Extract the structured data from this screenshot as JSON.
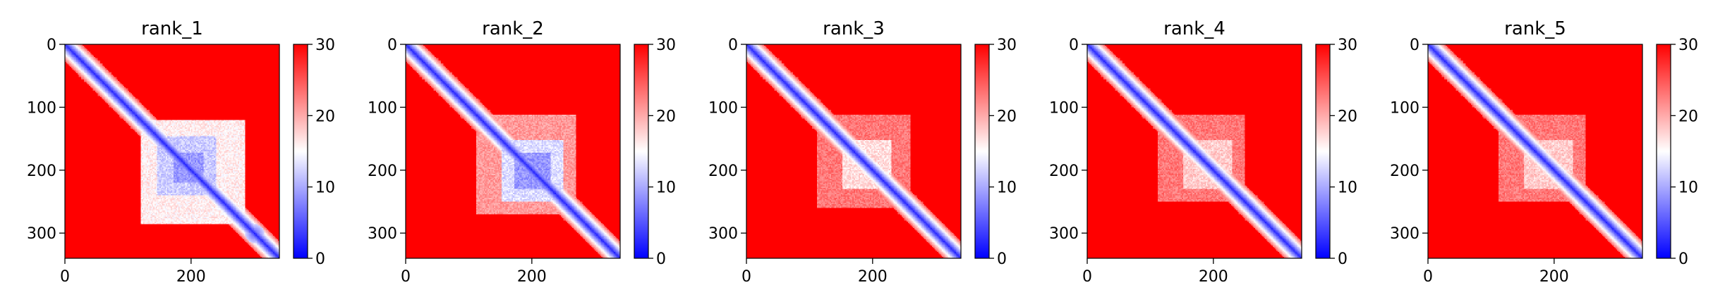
{
  "figure": {
    "background": "#ffffff"
  },
  "chart_data": [
    {
      "type": "heatmap",
      "title": "rank_1",
      "matrix_size": 340,
      "xlim": [
        0,
        340
      ],
      "ylim": [
        340,
        0
      ],
      "x_ticks": [
        0,
        200
      ],
      "y_ticks": [
        0,
        100,
        200,
        300
      ],
      "colorbar": {
        "range": [
          0,
          30
        ],
        "ticks": [
          0,
          10,
          20,
          30
        ],
        "colors": [
          "#0000ff",
          "#ffffff",
          "#ff0000"
        ]
      },
      "diagonal_value": 2,
      "features": [
        {
          "kind": "block",
          "range": [
            120,
            285
          ],
          "value": 14
        },
        {
          "kind": "block",
          "range": [
            145,
            240
          ],
          "value": 10
        },
        {
          "kind": "block",
          "range": [
            170,
            220
          ],
          "value": 7
        },
        {
          "kind": "blob",
          "center": [
            300,
            300
          ],
          "value": 5
        }
      ]
    },
    {
      "type": "heatmap",
      "title": "rank_2",
      "matrix_size": 340,
      "xlim": [
        0,
        340
      ],
      "ylim": [
        340,
        0
      ],
      "x_ticks": [
        0,
        200
      ],
      "y_ticks": [
        0,
        100,
        200,
        300
      ],
      "colorbar": {
        "range": [
          0,
          30
        ],
        "ticks": [
          0,
          10,
          20,
          30
        ],
        "colors": [
          "#0000ff",
          "#ffffff",
          "#ff0000"
        ]
      },
      "diagonal_value": 2,
      "features": [
        {
          "kind": "block",
          "range": [
            110,
            270
          ],
          "value": 19
        },
        {
          "kind": "block",
          "range": [
            150,
            250
          ],
          "value": 11
        },
        {
          "kind": "block",
          "range": [
            170,
            230
          ],
          "value": 7
        }
      ]
    },
    {
      "type": "heatmap",
      "title": "rank_3",
      "matrix_size": 340,
      "xlim": [
        0,
        340
      ],
      "ylim": [
        340,
        0
      ],
      "x_ticks": [
        0,
        200
      ],
      "y_ticks": [
        0,
        100,
        200,
        300
      ],
      "colorbar": {
        "range": [
          0,
          30
        ],
        "ticks": [
          0,
          10,
          20,
          30
        ],
        "colors": [
          "#0000ff",
          "#ffffff",
          "#ff0000"
        ]
      },
      "diagonal_value": 2,
      "features": [
        {
          "kind": "block",
          "range": [
            110,
            260
          ],
          "value": 21
        },
        {
          "kind": "block",
          "range": [
            150,
            230
          ],
          "value": 15
        }
      ]
    },
    {
      "type": "heatmap",
      "title": "rank_4",
      "matrix_size": 340,
      "xlim": [
        0,
        340
      ],
      "ylim": [
        340,
        0
      ],
      "x_ticks": [
        0,
        200
      ],
      "y_ticks": [
        0,
        100,
        200,
        300
      ],
      "colorbar": {
        "range": [
          0,
          30
        ],
        "ticks": [
          0,
          10,
          20,
          30
        ],
        "colors": [
          "#0000ff",
          "#ffffff",
          "#ff0000"
        ]
      },
      "diagonal_value": 2,
      "features": [
        {
          "kind": "block",
          "range": [
            110,
            250
          ],
          "value": 21
        },
        {
          "kind": "block",
          "range": [
            150,
            230
          ],
          "value": 16
        }
      ]
    },
    {
      "type": "heatmap",
      "title": "rank_5",
      "matrix_size": 340,
      "xlim": [
        0,
        340
      ],
      "ylim": [
        340,
        0
      ],
      "x_ticks": [
        0,
        200
      ],
      "y_ticks": [
        0,
        100,
        200,
        300
      ],
      "colorbar": {
        "range": [
          0,
          30
        ],
        "ticks": [
          0,
          10,
          20,
          30
        ],
        "colors": [
          "#0000ff",
          "#ffffff",
          "#ff0000"
        ]
      },
      "diagonal_value": 2,
      "features": [
        {
          "kind": "block",
          "range": [
            110,
            250
          ],
          "value": 21
        },
        {
          "kind": "block",
          "range": [
            150,
            230
          ],
          "value": 16
        }
      ]
    }
  ]
}
